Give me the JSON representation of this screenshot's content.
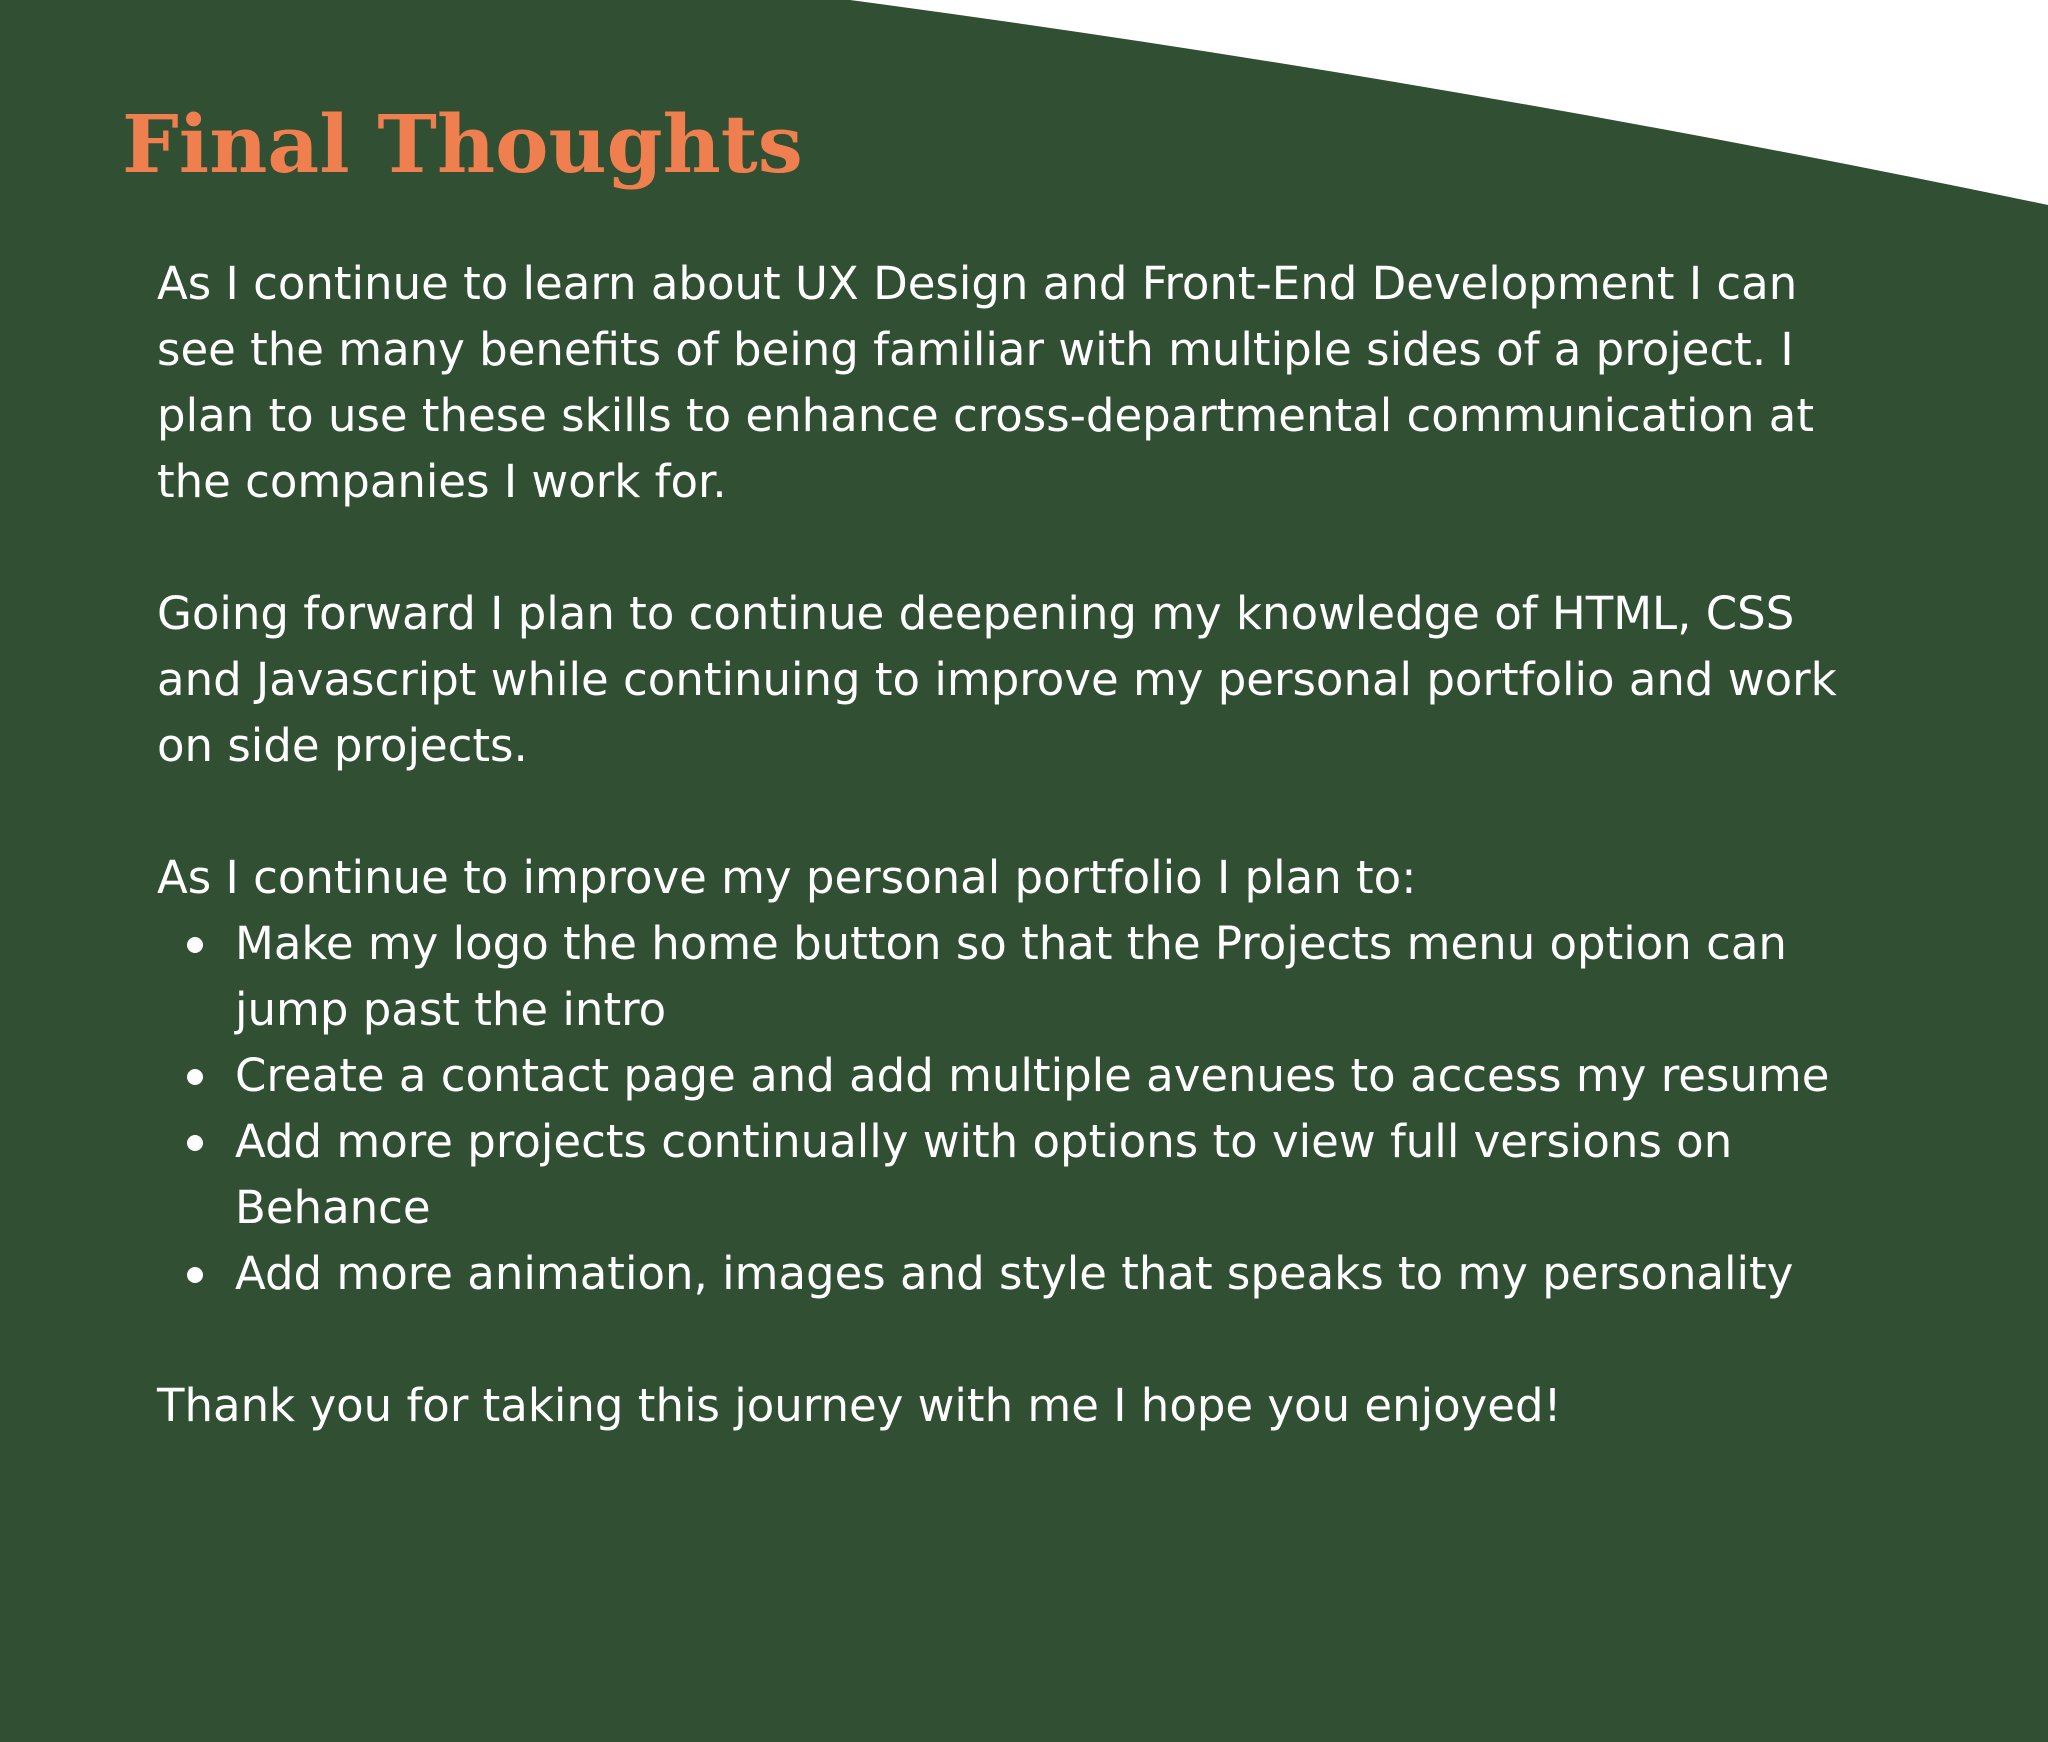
{
  "colors": {
    "background": "#314f32",
    "title": "#f07f50",
    "text": "#ffffff",
    "corner": "#ffffff"
  },
  "title": "Final Thoughts",
  "paragraphs": [
    "As I continue to learn about UX Design and Front-End Development I can see the many benefits of being familiar with multiple sides of a project. I plan to use these skills to enhance cross-departmental communication at the companies I work for.",
    "Going forward I plan to continue deepening my knowledge of HTML, CSS and Javascript while continuing to improve my personal portfolio and work on side projects.",
    "As I continue to improve my personal portfolio I plan to:"
  ],
  "bullets": [
    "Make my logo the home button so that the Projects menu option can jump past the intro",
    "Create a contact page and add multiple avenues to access my resume",
    "Add more projects continually with options to view full versions on Behance",
    "Add more animation, images and style that speaks to my personality"
  ],
  "closing": "Thank you for taking this journey with me I hope you enjoyed!"
}
